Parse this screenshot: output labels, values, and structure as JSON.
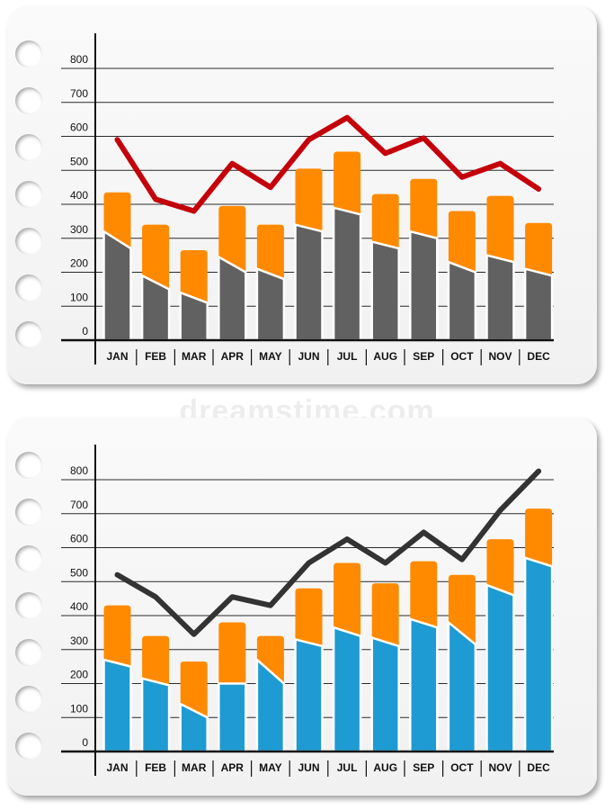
{
  "watermark": "dreamstime.com",
  "colors": {
    "orange": "#ff8a00",
    "gray": "#616161",
    "red": "#c4000a",
    "blue": "#1e9bd2",
    "black_line": "#333333"
  },
  "chart_data": [
    {
      "type": "bar",
      "title": "",
      "categories": [
        "JAN",
        "FEB",
        "MAR",
        "APR",
        "MAY",
        "JUN",
        "JUL",
        "AUG",
        "SEP",
        "OCT",
        "NOV",
        "DEC"
      ],
      "y_ticks": [
        "0",
        "100",
        "200",
        "300",
        "400",
        "500",
        "600",
        "700",
        "800"
      ],
      "ylim": [
        0,
        800
      ],
      "grid": true,
      "series": [
        {
          "kind": "bar",
          "stack": "base",
          "color": "gray",
          "values": [
            270,
            150,
            110,
            200,
            180,
            320,
            370,
            270,
            300,
            200,
            230,
            190
          ],
          "top_left": [
            320,
            190,
            140,
            245,
            210,
            340,
            390,
            290,
            320,
            230,
            250,
            210
          ],
          "top_right": [
            270,
            150,
            110,
            200,
            180,
            320,
            370,
            270,
            300,
            200,
            230,
            190
          ]
        },
        {
          "kind": "bar",
          "stack": "top",
          "color": "orange",
          "values": [
            435,
            340,
            265,
            395,
            340,
            505,
            555,
            430,
            475,
            380,
            425,
            345
          ]
        },
        {
          "kind": "line",
          "color": "red",
          "values": [
            590,
            415,
            380,
            520,
            450,
            590,
            655,
            550,
            595,
            480,
            520,
            445
          ]
        }
      ]
    },
    {
      "type": "bar",
      "title": "",
      "categories": [
        "JAN",
        "FEB",
        "MAR",
        "APR",
        "MAY",
        "JUN",
        "JUL",
        "AUG",
        "SEP",
        "OCT",
        "NOV",
        "DEC"
      ],
      "y_ticks": [
        "0",
        "100",
        "200",
        "300",
        "400",
        "500",
        "600",
        "700",
        "800"
      ],
      "ylim": [
        0,
        800
      ],
      "grid": true,
      "series": [
        {
          "kind": "bar",
          "stack": "base",
          "color": "blue",
          "values": [
            250,
            195,
            100,
            200,
            200,
            310,
            340,
            310,
            365,
            315,
            460,
            545
          ],
          "top_left": [
            270,
            215,
            140,
            200,
            270,
            330,
            365,
            335,
            390,
            380,
            490,
            570
          ],
          "top_right": [
            250,
            195,
            100,
            200,
            200,
            310,
            340,
            310,
            365,
            315,
            460,
            545
          ]
        },
        {
          "kind": "bar",
          "stack": "top",
          "color": "orange",
          "values": [
            430,
            340,
            265,
            380,
            340,
            480,
            555,
            495,
            560,
            520,
            625,
            715
          ]
        },
        {
          "kind": "line",
          "color": "black_line",
          "values": [
            520,
            455,
            345,
            455,
            430,
            555,
            625,
            555,
            645,
            565,
            710,
            825
          ]
        }
      ]
    }
  ]
}
